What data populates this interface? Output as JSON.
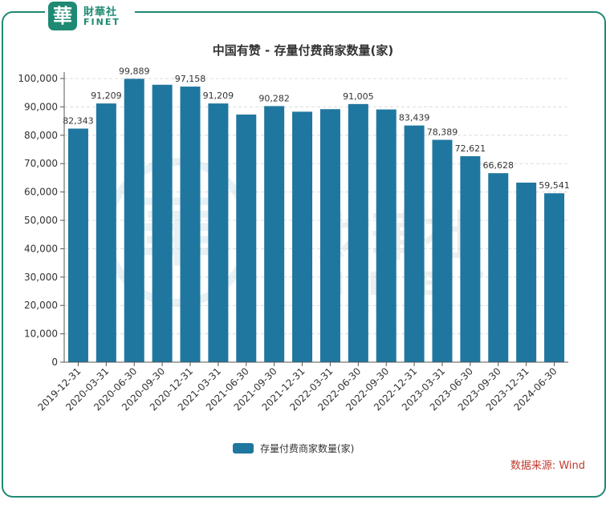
{
  "brand": {
    "logo_char": "華",
    "name_cn": "財華社",
    "name_en": "FINET"
  },
  "watermark": {
    "char": "華",
    "name_cn": "財華社",
    "name_en": "FINET"
  },
  "source_note": "数据来源: Wind",
  "colors": {
    "bar": "#1f77a0",
    "frame": "#1f8a73",
    "source": "#c0392b"
  },
  "chart_data": {
    "type": "bar",
    "title": "中国有赞 - 存量付费商家数量(家)",
    "categories": [
      "2019-12-31",
      "2020-03-31",
      "2020-06-30",
      "2020-09-30",
      "2020-12-31",
      "2021-03-31",
      "2021-06-30",
      "2021-09-30",
      "2021-12-31",
      "2022-03-31",
      "2022-06-30",
      "2022-09-30",
      "2022-12-31",
      "2023-03-31",
      "2023-06-30",
      "2023-09-30",
      "2023-12-31",
      "2024-06-30"
    ],
    "series": [
      {
        "name": "存量付费商家数量(家)",
        "values": [
          82343,
          91209,
          99889,
          97800,
          97158,
          91209,
          87300,
          90282,
          88300,
          89200,
          91005,
          89100,
          83439,
          78389,
          72621,
          66628,
          63300,
          59541
        ],
        "labels": [
          "82,343",
          "91,209",
          "99,889",
          "",
          "97,158",
          "91,209",
          "",
          "90,282",
          "",
          "",
          "91,005",
          "",
          "83,439",
          "78,389",
          "72,621",
          "66,628",
          "",
          "59,541"
        ]
      }
    ],
    "ylim": [
      0,
      100000
    ],
    "yticks": [
      "0",
      "10,000",
      "20,000",
      "30,000",
      "40,000",
      "50,000",
      "60,000",
      "70,000",
      "80,000",
      "90,000",
      "100,000"
    ],
    "grid": true,
    "legend": "bottom"
  }
}
